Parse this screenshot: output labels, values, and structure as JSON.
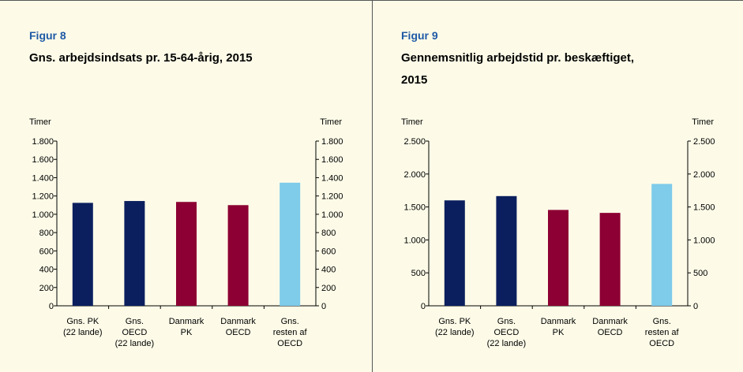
{
  "chart_data": [
    {
      "type": "bar",
      "title": "Figur 8",
      "subtitle": [
        "Gns. arbejdsindsats pr. 15-64-årig, 2015"
      ],
      "ylabel": "Timer",
      "y2label": "Timer",
      "categories": [
        [
          "Gns. PK",
          "(22 lande)"
        ],
        [
          "Gns.",
          "OECD",
          "(22 lande)"
        ],
        [
          "Danmark",
          "PK"
        ],
        [
          "Danmark",
          "OECD"
        ],
        [
          "Gns.",
          "resten af",
          "OECD"
        ]
      ],
      "values": [
        1125,
        1145,
        1135,
        1100,
        1345
      ],
      "colors": [
        "#0b1f5e",
        "#0b1f5e",
        "#8c0033",
        "#8c0033",
        "#7ecbea"
      ],
      "ylim": [
        0,
        1800
      ],
      "yticks": [
        0,
        200,
        400,
        600,
        800,
        {
          "value": 1000,
          "label": "1.000"
        },
        {
          "value": 1200,
          "label": "1.200"
        },
        {
          "value": 1400,
          "label": "1.400"
        },
        {
          "value": 1600,
          "label": "1.600"
        },
        {
          "value": 1800,
          "label": "1.800"
        }
      ],
      "y2lim": [
        0,
        1800
      ],
      "y2ticks": [
        0,
        200,
        400,
        600,
        800,
        {
          "value": 1000,
          "label": "1.000"
        },
        {
          "value": 1200,
          "label": "1.200"
        },
        {
          "value": 1400,
          "label": "1.400"
        },
        {
          "value": 1600,
          "label": "1.600"
        },
        {
          "value": 1800,
          "label": "1.800"
        }
      ]
    },
    {
      "type": "bar",
      "title": "Figur 9",
      "subtitle": [
        "Gennemsnitlig arbejdstid pr. beskæftiget,",
        "2015"
      ],
      "ylabel": "Timer",
      "y2label": "Timer",
      "categories": [
        [
          "Gns. PK",
          "(22 lande)"
        ],
        [
          "Gns.",
          "OECD",
          "(22 lande)"
        ],
        [
          "Danmark",
          "PK"
        ],
        [
          "Danmark",
          "OECD"
        ],
        [
          "Gns.",
          "resten af",
          "OECD"
        ]
      ],
      "values": [
        1600,
        1665,
        1455,
        1410,
        1850
      ],
      "colors": [
        "#0b1f5e",
        "#0b1f5e",
        "#8c0033",
        "#8c0033",
        "#7ecbea"
      ],
      "ylim": [
        0,
        2500
      ],
      "yticks": [
        0,
        500,
        {
          "value": 1000,
          "label": "1.000"
        },
        {
          "value": 1500,
          "label": "1.500"
        },
        {
          "value": 2000,
          "label": "2.000"
        },
        {
          "value": 2500,
          "label": "2.500"
        }
      ],
      "y2lim": [
        0,
        2500
      ],
      "y2ticks": [
        0,
        500,
        {
          "value": 1000,
          "label": "1.000"
        },
        {
          "value": 1500,
          "label": "1.500"
        },
        {
          "value": 2000,
          "label": "2.000"
        },
        {
          "value": 2500,
          "label": "2.500"
        }
      ]
    }
  ]
}
